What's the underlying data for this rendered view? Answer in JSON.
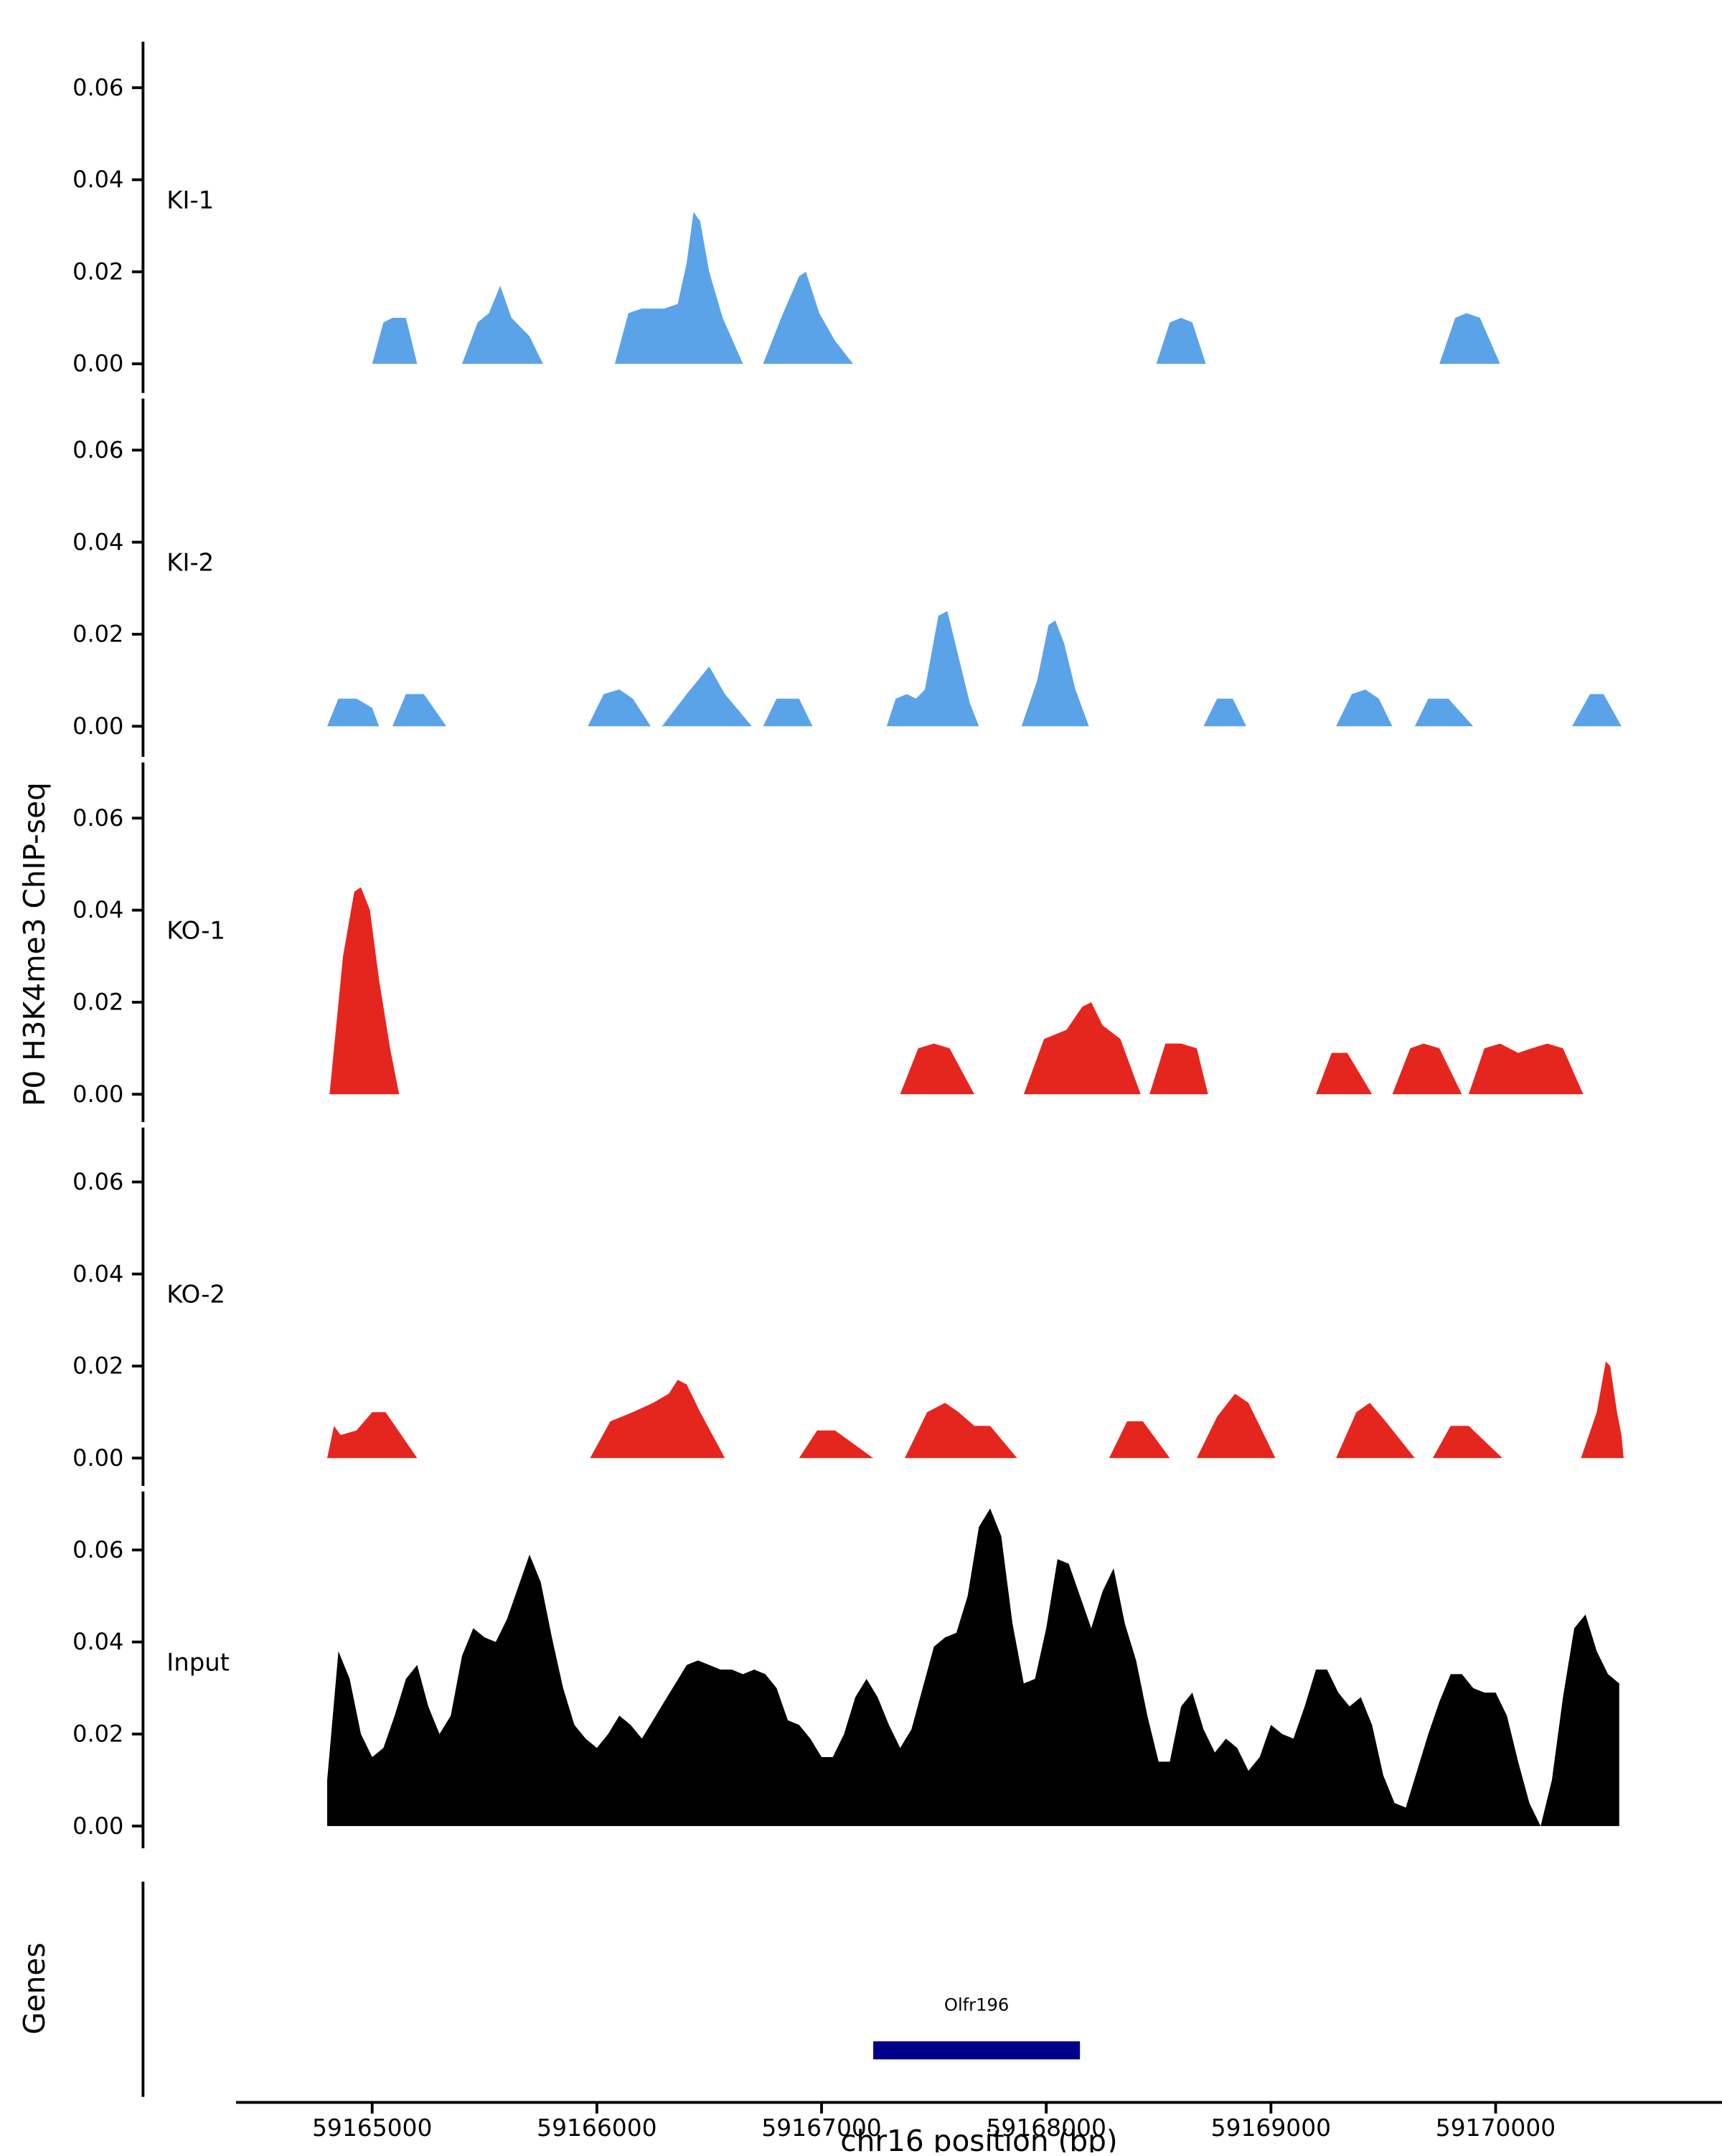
{
  "figure": {
    "y_axis_title": "P0 H3K4me3 ChIP-seq",
    "genes_axis_title": "Genes",
    "x_axis_title": "chr16 position (bp)"
  },
  "chart_data": {
    "type": "area",
    "xlabel": "chr16 position (bp)",
    "ylabel": "P0 H3K4me3 ChIP-seq",
    "xlim": [
      59164400,
      59171000
    ],
    "ylim_per_track": [
      0,
      0.07
    ],
    "grid": false,
    "x_ticks": [
      59165000,
      59166000,
      59167000,
      59168000,
      59169000,
      59170000
    ],
    "y_ticks": [
      0,
      0.02,
      0.04,
      0.06
    ],
    "colors": {
      "ki": "#5BA3E8",
      "ko": "#E5261F",
      "input": "#000000",
      "gene": "#00008B"
    },
    "tracks": [
      {
        "name": "KI-1",
        "color": "#5BA3E8",
        "points": [
          [
            59165000,
            0
          ],
          [
            59165050,
            0.009
          ],
          [
            59165090,
            0.01
          ],
          [
            59165150,
            0.01
          ],
          [
            59165200,
            0
          ],
          [
            59165400,
            0
          ],
          [
            59165470,
            0.009
          ],
          [
            59165520,
            0.011
          ],
          [
            59165570,
            0.017
          ],
          [
            59165620,
            0.01
          ],
          [
            59165700,
            0.006
          ],
          [
            59165760,
            0
          ],
          [
            59166080,
            0
          ],
          [
            59166140,
            0.011
          ],
          [
            59166200,
            0.012
          ],
          [
            59166300,
            0.012
          ],
          [
            59166360,
            0.013
          ],
          [
            59166400,
            0.022
          ],
          [
            59166430,
            0.033
          ],
          [
            59166460,
            0.031
          ],
          [
            59166500,
            0.02
          ],
          [
            59166560,
            0.01
          ],
          [
            59166650,
            0
          ],
          [
            59166740,
            0
          ],
          [
            59166820,
            0.01
          ],
          [
            59166900,
            0.019
          ],
          [
            59166930,
            0.02
          ],
          [
            59166990,
            0.011
          ],
          [
            59167060,
            0.005
          ],
          [
            59167140,
            0
          ],
          [
            59168490,
            0
          ],
          [
            59168550,
            0.009
          ],
          [
            59168600,
            0.01
          ],
          [
            59168650,
            0.009
          ],
          [
            59168710,
            0
          ],
          [
            59169750,
            0
          ],
          [
            59169820,
            0.01
          ],
          [
            59169870,
            0.011
          ],
          [
            59169930,
            0.01
          ],
          [
            59170020,
            0
          ]
        ]
      },
      {
        "name": "KI-2",
        "color": "#5BA3E8",
        "points": [
          [
            59164800,
            0
          ],
          [
            59164850,
            0.006
          ],
          [
            59164930,
            0.006
          ],
          [
            59165000,
            0.004
          ],
          [
            59165030,
            0
          ],
          [
            59165090,
            0
          ],
          [
            59165150,
            0.007
          ],
          [
            59165230,
            0.007
          ],
          [
            59165330,
            0
          ],
          [
            59165960,
            0
          ],
          [
            59166030,
            0.007
          ],
          [
            59166100,
            0.008
          ],
          [
            59166160,
            0.006
          ],
          [
            59166240,
            0
          ],
          [
            59166290,
            0
          ],
          [
            59166400,
            0.007
          ],
          [
            59166500,
            0.013
          ],
          [
            59166570,
            0.007
          ],
          [
            59166690,
            0
          ],
          [
            59166740,
            0
          ],
          [
            59166800,
            0.006
          ],
          [
            59166900,
            0.006
          ],
          [
            59166960,
            0
          ],
          [
            59167290,
            0
          ],
          [
            59167330,
            0.006
          ],
          [
            59167380,
            0.007
          ],
          [
            59167420,
            0.006
          ],
          [
            59167460,
            0.008
          ],
          [
            59167520,
            0.024
          ],
          [
            59167560,
            0.025
          ],
          [
            59167610,
            0.015
          ],
          [
            59167660,
            0.005
          ],
          [
            59167700,
            0
          ],
          [
            59167890,
            0
          ],
          [
            59167960,
            0.01
          ],
          [
            59168010,
            0.022
          ],
          [
            59168040,
            0.023
          ],
          [
            59168080,
            0.018
          ],
          [
            59168130,
            0.008
          ],
          [
            59168190,
            0
          ],
          [
            59168700,
            0
          ],
          [
            59168760,
            0.006
          ],
          [
            59168830,
            0.006
          ],
          [
            59168890,
            0
          ],
          [
            59169290,
            0
          ],
          [
            59169360,
            0.007
          ],
          [
            59169420,
            0.008
          ],
          [
            59169480,
            0.006
          ],
          [
            59169540,
            0
          ],
          [
            59169640,
            0
          ],
          [
            59169700,
            0.006
          ],
          [
            59169790,
            0.006
          ],
          [
            59169900,
            0
          ],
          [
            59170340,
            0
          ],
          [
            59170420,
            0.007
          ],
          [
            59170480,
            0.007
          ],
          [
            59170560,
            0
          ]
        ]
      },
      {
        "name": "KO-1",
        "color": "#E5261F",
        "points": [
          [
            59164810,
            0
          ],
          [
            59164870,
            0.03
          ],
          [
            59164920,
            0.044
          ],
          [
            59164950,
            0.045
          ],
          [
            59164990,
            0.04
          ],
          [
            59165030,
            0.025
          ],
          [
            59165080,
            0.01
          ],
          [
            59165120,
            0
          ],
          [
            59167350,
            0
          ],
          [
            59167430,
            0.01
          ],
          [
            59167500,
            0.011
          ],
          [
            59167570,
            0.01
          ],
          [
            59167680,
            0
          ],
          [
            59167900,
            0
          ],
          [
            59167990,
            0.012
          ],
          [
            59168090,
            0.014
          ],
          [
            59168160,
            0.019
          ],
          [
            59168200,
            0.02
          ],
          [
            59168250,
            0.015
          ],
          [
            59168330,
            0.012
          ],
          [
            59168420,
            0
          ],
          [
            59168460,
            0
          ],
          [
            59168530,
            0.011
          ],
          [
            59168600,
            0.011
          ],
          [
            59168670,
            0.01
          ],
          [
            59168720,
            0
          ],
          [
            59169200,
            0
          ],
          [
            59169270,
            0.009
          ],
          [
            59169340,
            0.009
          ],
          [
            59169450,
            0
          ],
          [
            59169540,
            0
          ],
          [
            59169620,
            0.01
          ],
          [
            59169680,
            0.011
          ],
          [
            59169750,
            0.01
          ],
          [
            59169850,
            0
          ],
          [
            59169880,
            0
          ],
          [
            59169950,
            0.01
          ],
          [
            59170020,
            0.011
          ],
          [
            59170100,
            0.009
          ],
          [
            59170160,
            0.01
          ],
          [
            59170230,
            0.011
          ],
          [
            59170300,
            0.01
          ],
          [
            59170390,
            0
          ]
        ]
      },
      {
        "name": "KO-2",
        "color": "#E5261F",
        "points": [
          [
            59164800,
            0
          ],
          [
            59164830,
            0.007
          ],
          [
            59164860,
            0.005
          ],
          [
            59164930,
            0.006
          ],
          [
            59165000,
            0.01
          ],
          [
            59165060,
            0.01
          ],
          [
            59165130,
            0.005
          ],
          [
            59165200,
            0
          ],
          [
            59165970,
            0
          ],
          [
            59166060,
            0.008
          ],
          [
            59166160,
            0.01
          ],
          [
            59166250,
            0.012
          ],
          [
            59166320,
            0.014
          ],
          [
            59166360,
            0.017
          ],
          [
            59166400,
            0.016
          ],
          [
            59166460,
            0.01
          ],
          [
            59166570,
            0
          ],
          [
            59166900,
            0
          ],
          [
            59166980,
            0.006
          ],
          [
            59167060,
            0.006
          ],
          [
            59167230,
            0
          ],
          [
            59167370,
            0
          ],
          [
            59167470,
            0.01
          ],
          [
            59167550,
            0.012
          ],
          [
            59167610,
            0.01
          ],
          [
            59167680,
            0.007
          ],
          [
            59167750,
            0.007
          ],
          [
            59167870,
            0
          ],
          [
            59168280,
            0
          ],
          [
            59168360,
            0.008
          ],
          [
            59168430,
            0.008
          ],
          [
            59168550,
            0
          ],
          [
            59168670,
            0
          ],
          [
            59168760,
            0.009
          ],
          [
            59168840,
            0.014
          ],
          [
            59168900,
            0.012
          ],
          [
            59169020,
            0
          ],
          [
            59169290,
            0
          ],
          [
            59169380,
            0.01
          ],
          [
            59169440,
            0.012
          ],
          [
            59169510,
            0.008
          ],
          [
            59169640,
            0
          ],
          [
            59169720,
            0
          ],
          [
            59169800,
            0.007
          ],
          [
            59169880,
            0.007
          ],
          [
            59170030,
            0
          ],
          [
            59170380,
            0
          ],
          [
            59170450,
            0.01
          ],
          [
            59170490,
            0.021
          ],
          [
            59170510,
            0.02
          ],
          [
            59170540,
            0.01
          ],
          [
            59170560,
            0.005
          ],
          [
            59170570,
            0
          ]
        ]
      },
      {
        "name": "Input",
        "color": "#000000",
        "x_start": 59164800,
        "x_step": 50,
        "values": [
          0.01,
          0.038,
          0.032,
          0.02,
          0.015,
          0.017,
          0.024,
          0.032,
          0.035,
          0.026,
          0.02,
          0.024,
          0.037,
          0.043,
          0.041,
          0.04,
          0.045,
          0.052,
          0.059,
          0.053,
          0.041,
          0.03,
          0.022,
          0.019,
          0.017,
          0.02,
          0.024,
          0.022,
          0.019,
          0.023,
          0.027,
          0.031,
          0.035,
          0.036,
          0.035,
          0.034,
          0.034,
          0.033,
          0.034,
          0.033,
          0.03,
          0.023,
          0.022,
          0.019,
          0.015,
          0.015,
          0.02,
          0.028,
          0.032,
          0.028,
          0.022,
          0.017,
          0.021,
          0.03,
          0.039,
          0.041,
          0.042,
          0.05,
          0.065,
          0.069,
          0.063,
          0.044,
          0.031,
          0.032,
          0.043,
          0.058,
          0.057,
          0.05,
          0.043,
          0.051,
          0.056,
          0.044,
          0.036,
          0.024,
          0.014,
          0.014,
          0.026,
          0.029,
          0.021,
          0.016,
          0.019,
          0.017,
          0.012,
          0.015,
          0.022,
          0.02,
          0.019,
          0.026,
          0.034,
          0.034,
          0.029,
          0.026,
          0.028,
          0.022,
          0.011,
          0.005,
          0.004,
          0.012,
          0.02,
          0.027,
          0.033,
          0.033,
          0.03,
          0.029,
          0.029,
          0.024,
          0.014,
          0.005,
          0.0,
          0.01,
          0.028,
          0.043,
          0.046,
          0.038,
          0.033,
          0.031
        ]
      }
    ],
    "genes": [
      {
        "name": "Olfr196",
        "start": 59167230,
        "end": 59168150,
        "color": "#00008B"
      }
    ]
  }
}
